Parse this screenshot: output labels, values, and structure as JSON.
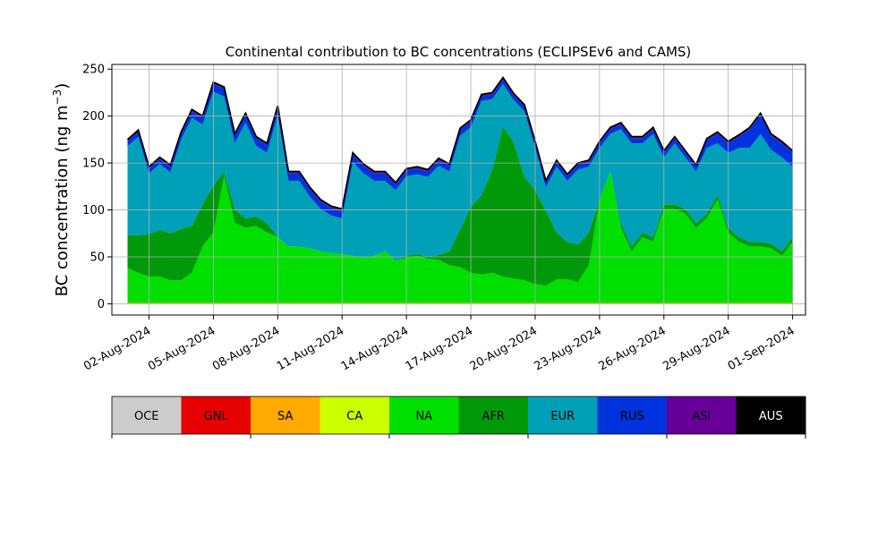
{
  "chart_data": {
    "type": "area",
    "stacked": true,
    "title": "Continental contribution to BC concentrations (ECLIPSEv6 and CAMS)",
    "ylabel": "BC concentration (ng m",
    "ylabel_superscript": "−3",
    "ylabel_suffix": ")",
    "xlabel": "",
    "ylim": [
      -12,
      255
    ],
    "y_ticks": [
      0,
      50,
      100,
      150,
      200,
      250
    ],
    "x_range_day": [
      0.27,
      32.6
    ],
    "x_ticks": [
      {
        "day": 2,
        "label": "02-Aug-2024"
      },
      {
        "day": 5,
        "label": "05-Aug-2024"
      },
      {
        "day": 8,
        "label": "08-Aug-2024"
      },
      {
        "day": 11,
        "label": "11-Aug-2024"
      },
      {
        "day": 14,
        "label": "14-Aug-2024"
      },
      {
        "day": 17,
        "label": "17-Aug-2024"
      },
      {
        "day": 20,
        "label": "20-Aug-2024"
      },
      {
        "day": 23,
        "label": "23-Aug-2024"
      },
      {
        "day": 26,
        "label": "26-Aug-2024"
      },
      {
        "day": 29,
        "label": "29-Aug-2024"
      },
      {
        "day": 32,
        "label": "01-Sep-2024"
      }
    ],
    "grid": true,
    "x_day": [
      1.0,
      1.5,
      2.0,
      2.5,
      3.0,
      3.5,
      4.0,
      4.5,
      5.0,
      5.5,
      6.0,
      6.5,
      7.0,
      7.5,
      8.0,
      8.5,
      9.0,
      9.5,
      10.0,
      10.5,
      11.0,
      11.5,
      12.0,
      12.5,
      13.0,
      13.5,
      14.0,
      14.5,
      15.0,
      15.5,
      16.0,
      16.5,
      17.0,
      17.5,
      18.0,
      18.5,
      19.0,
      19.5,
      20.0,
      20.5,
      21.0,
      21.5,
      22.0,
      22.5,
      23.0,
      23.5,
      24.0,
      24.5,
      25.0,
      25.5,
      26.0,
      26.5,
      27.0,
      27.5,
      28.0,
      28.5,
      29.0,
      29.5,
      30.0,
      30.5,
      31.0,
      31.5,
      32.0
    ],
    "series": [
      {
        "name": "OCE",
        "color": "#cccccc",
        "values": [
          0,
          0,
          0,
          0,
          0,
          0,
          0,
          0,
          0,
          0,
          0,
          0,
          0,
          0,
          0,
          0,
          0,
          0,
          0,
          0,
          0,
          0,
          0,
          0,
          0,
          0,
          0,
          0,
          0,
          0,
          0,
          0,
          0,
          0,
          0,
          0,
          0,
          0,
          0,
          0,
          0,
          0,
          0,
          0,
          0,
          0,
          0,
          0,
          0,
          0,
          0,
          0,
          0,
          0,
          0,
          0,
          0,
          0,
          0,
          0,
          0,
          0,
          0
        ]
      },
      {
        "name": "GNL",
        "color": "#e60000",
        "values": [
          0,
          0,
          0,
          0,
          0,
          0,
          0,
          0,
          0,
          0,
          0,
          0,
          0,
          0,
          0,
          0,
          0,
          0,
          0,
          0,
          0,
          0,
          0,
          0,
          0,
          0,
          0,
          0,
          0,
          0,
          0,
          0,
          0,
          0,
          0,
          0,
          0,
          0,
          0,
          0,
          0,
          0,
          0,
          0,
          0,
          0,
          0,
          0,
          0,
          0,
          0,
          0,
          0,
          0,
          0,
          0,
          0,
          0,
          0,
          0,
          0,
          0,
          0
        ]
      },
      {
        "name": "SA",
        "color": "#ffaa00",
        "values": [
          1,
          1,
          1,
          1,
          1,
          1,
          1,
          1,
          1,
          1,
          1,
          1,
          1,
          1,
          1,
          1,
          1,
          1,
          1,
          1,
          1,
          1,
          1,
          1,
          1,
          1,
          1,
          1,
          1,
          1,
          1,
          1,
          1,
          1,
          1,
          1,
          1,
          1,
          1,
          1,
          1,
          1,
          1,
          1,
          1,
          1,
          1,
          1,
          1,
          1,
          1,
          1,
          1,
          1,
          1,
          1,
          1,
          1,
          1,
          1,
          1,
          1,
          1
        ]
      },
      {
        "name": "CA",
        "color": "#ccff00",
        "values": [
          0,
          0,
          0,
          0,
          0,
          0,
          0,
          0,
          0,
          0,
          0,
          0,
          0,
          0,
          0,
          0,
          0,
          0,
          0,
          0,
          0,
          0,
          0,
          0,
          0,
          0,
          0,
          0,
          0,
          0,
          0,
          0,
          0,
          0,
          0,
          0,
          0,
          0,
          0,
          0,
          0,
          0,
          0,
          0,
          0,
          0,
          0,
          0,
          0,
          0,
          0,
          0,
          0,
          0,
          0,
          0,
          0,
          0,
          0,
          0,
          0,
          0,
          0
        ]
      },
      {
        "name": "NA",
        "color": "#00e000",
        "values": [
          37,
          32,
          28,
          28,
          24,
          24,
          32,
          60,
          75,
          135,
          85,
          80,
          82,
          75,
          70,
          60,
          60,
          58,
          55,
          53,
          52,
          50,
          48,
          50,
          55,
          45,
          48,
          50,
          47,
          46,
          40,
          38,
          32,
          30,
          32,
          28,
          26,
          24,
          20,
          18,
          25,
          25,
          22,
          40,
          110,
          140,
          80,
          55,
          70,
          65,
          100,
          100,
          95,
          80,
          90,
          110,
          75,
          65,
          60,
          60,
          58,
          50,
          65
        ]
      },
      {
        "name": "AFR",
        "color": "#00990a",
        "values": [
          35,
          40,
          45,
          50,
          50,
          55,
          50,
          45,
          50,
          5,
          15,
          10,
          10,
          10,
          0,
          0,
          0,
          0,
          0,
          0,
          0,
          0,
          0,
          0,
          0,
          0,
          2,
          2,
          2,
          5,
          15,
          40,
          70,
          85,
          110,
          160,
          145,
          110,
          100,
          80,
          50,
          40,
          40,
          35,
          0,
          0,
          5,
          5,
          5,
          5,
          5,
          5,
          5,
          5,
          5,
          5,
          5,
          5,
          5,
          5,
          5,
          5,
          5
        ]
      },
      {
        "name": "EUR",
        "color": "#00a0b8",
        "values": [
          95,
          105,
          65,
          70,
          65,
          95,
          115,
          85,
          100,
          80,
          70,
          102,
          75,
          75,
          130,
          70,
          70,
          55,
          45,
          40,
          38,
          100,
          90,
          80,
          75,
          75,
          85,
          85,
          85,
          95,
          85,
          100,
          85,
          100,
          75,
          45,
          45,
          70,
          45,
          25,
          70,
          65,
          80,
          70,
          55,
          40,
          100,
          110,
          95,
          110,
          50,
          65,
          55,
          55,
          70,
          55,
          80,
          95,
          100,
          115,
          100,
          100,
          75
        ]
      },
      {
        "name": "RUS",
        "color": "#0033dd",
        "values": [
          5,
          5,
          5,
          5,
          6,
          6,
          7,
          7,
          8,
          8,
          8,
          8,
          8,
          8,
          8,
          8,
          8,
          8,
          8,
          8,
          8,
          8,
          8,
          8,
          8,
          6,
          6,
          6,
          6,
          6,
          6,
          6,
          6,
          5,
          5,
          5,
          5,
          5,
          5,
          5,
          5,
          5,
          5,
          5,
          5,
          5,
          5,
          5,
          5,
          5,
          5,
          5,
          5,
          5,
          8,
          10,
          10,
          12,
          20,
          20,
          15,
          15,
          15
        ]
      },
      {
        "name": "ASI",
        "color": "#660099",
        "values": [
          1,
          1,
          1,
          1,
          1,
          1,
          1,
          1,
          1,
          1,
          1,
          1,
          1,
          1,
          1,
          1,
          1,
          1,
          1,
          1,
          1,
          1,
          1,
          1,
          1,
          1,
          1,
          1,
          1,
          1,
          1,
          1,
          1,
          1,
          1,
          1,
          1,
          1,
          1,
          1,
          1,
          1,
          1,
          1,
          1,
          1,
          1,
          1,
          1,
          1,
          1,
          1,
          1,
          1,
          1,
          1,
          1,
          1,
          1,
          1,
          1,
          1,
          1
        ]
      },
      {
        "name": "AUS",
        "color": "#000000",
        "values": [
          1,
          1,
          1,
          1,
          1,
          1,
          1,
          1,
          1,
          1,
          1,
          1,
          1,
          1,
          1,
          1,
          1,
          1,
          1,
          1,
          1,
          1,
          1,
          1,
          1,
          1,
          1,
          1,
          1,
          1,
          1,
          1,
          1,
          1,
          1,
          1,
          1,
          1,
          1,
          1,
          1,
          1,
          1,
          1,
          1,
          1,
          1,
          1,
          1,
          1,
          1,
          1,
          1,
          1,
          1,
          1,
          1,
          1,
          1,
          1,
          1,
          1,
          1
        ]
      }
    ],
    "legend": {
      "placement": "bottom",
      "items": [
        "OCE",
        "GNL",
        "SA",
        "CA",
        "NA",
        "AFR",
        "EUR",
        "RUS",
        "ASI",
        "AUS"
      ],
      "text_colors": [
        "#000000",
        "#000000",
        "#000000",
        "#000000",
        "#000000",
        "#000000",
        "#000000",
        "#000000",
        "#000000",
        "#ffffff"
      ]
    }
  }
}
